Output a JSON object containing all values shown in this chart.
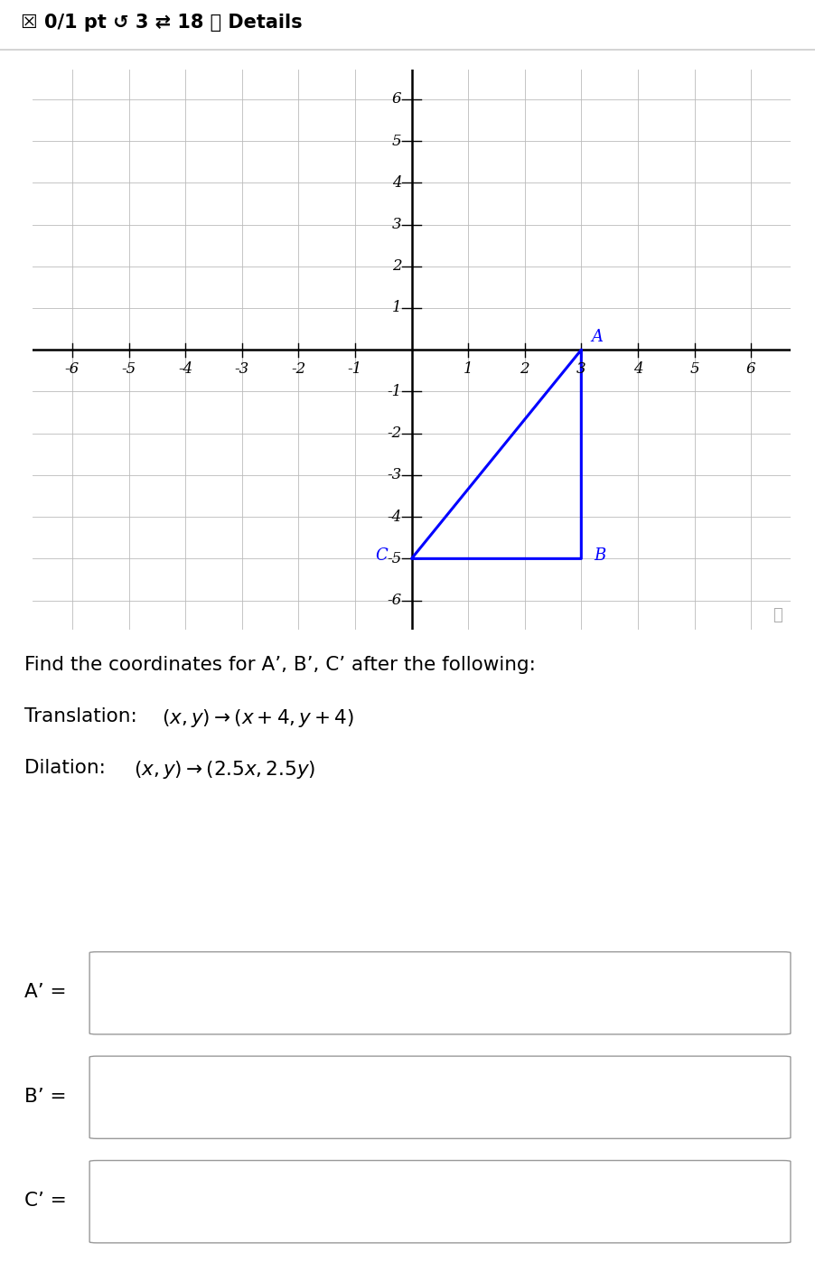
{
  "triangle_vertices": {
    "A": [
      3,
      0
    ],
    "B": [
      3,
      -5
    ],
    "C": [
      0,
      -5
    ]
  },
  "triangle_color": "#0000ff",
  "triangle_linewidth": 2.2,
  "grid_color": "#bbbbbb",
  "axis_color": "#000000",
  "xlim": [
    -6.7,
    6.7
  ],
  "ylim": [
    -6.7,
    6.7
  ],
  "bg_color": "#ffffff",
  "header_text": "☒ 0/1 pt ↺ 3 ⇄ 18 ⓘ Details",
  "text_line1": "Find the coordinates for A’, B’, C’ after the following:",
  "text_line2_prefix": "Translation: ",
  "text_line2_math": "(x, y) \\rightarrow (x + 4, y + 4)",
  "text_line3_prefix": "Dilation: ",
  "text_line3_math": "(x, y) \\rightarrow (2.5x, 2.5y)",
  "input_labels": [
    "A’ =",
    "B’ =",
    "C’ ="
  ],
  "search_icon_color": "#aaaaaa",
  "header_line_color": "#cccccc"
}
